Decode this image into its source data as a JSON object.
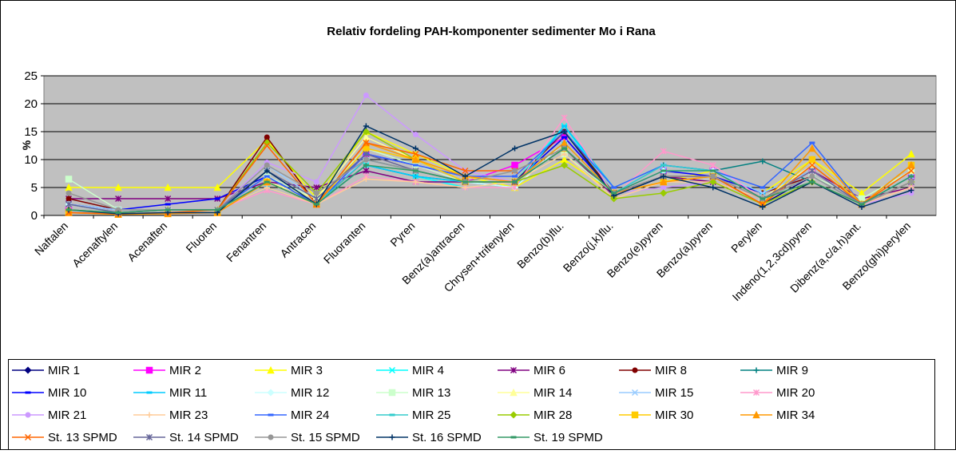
{
  "chart_data": {
    "type": "line",
    "title": "Relativ fordeling PAH-komponenter sedimenter Mo i Rana",
    "y_label": "%",
    "categories": [
      "Naftalen",
      "Acenaftylen",
      "Acenaften",
      "Fluoren",
      "Fenantren",
      "Antracen",
      "Fluoranten",
      "Pyren",
      "Benz(a)antracen",
      "Chrysen+trifenylen",
      "Benzo(b)flu.",
      "Benzo(j,k)flu.",
      "Benzo(e)pyren",
      "Benzo(a)pyren",
      "Perylen",
      "Indeno(1,2,3cd)pyren",
      "Dibenz(a,c/a,h)ant.",
      "Benzo(ghi)perylen"
    ],
    "ylim": [
      0,
      25
    ],
    "yticks": [
      0,
      5,
      10,
      15,
      20,
      25
    ],
    "grid": true,
    "plot_background": "#c0c0c0",
    "series": [
      {
        "name": "MIR 1",
        "color": "#000080",
        "marker": "diamond",
        "values": [
          2,
          0.5,
          1,
          1,
          7,
          2,
          10,
          8,
          6,
          6,
          14,
          4,
          7,
          7,
          2,
          7,
          2,
          6
        ]
      },
      {
        "name": "MIR 2",
        "color": "#ff00ff",
        "marker": "square",
        "values": [
          1,
          0.5,
          1,
          1,
          6,
          2,
          11,
          9,
          6,
          9,
          14,
          4,
          8,
          8,
          3,
          8,
          2,
          7
        ]
      },
      {
        "name": "MIR 3",
        "color": "#ffff00",
        "marker": "triangle",
        "values": [
          5,
          5,
          5,
          5,
          13.5,
          3,
          15,
          11,
          7,
          5,
          10,
          4,
          6,
          8,
          4,
          10,
          4,
          11
        ]
      },
      {
        "name": "MIR 4",
        "color": "#00ffff",
        "marker": "x",
        "values": [
          2,
          0.5,
          1,
          1,
          6,
          2,
          9,
          7,
          5,
          6,
          16,
          4,
          8,
          8,
          4,
          8,
          2,
          7
        ]
      },
      {
        "name": "MIR 6",
        "color": "#800080",
        "marker": "star",
        "values": [
          3,
          3,
          3,
          3,
          6,
          5,
          8,
          6,
          6,
          6,
          12,
          3.5,
          7,
          6,
          3,
          8,
          3,
          5
        ]
      },
      {
        "name": "MIR 8",
        "color": "#800000",
        "marker": "circle",
        "values": [
          3,
          1,
          1,
          1,
          14,
          2,
          10,
          8,
          6,
          6,
          15,
          4,
          7,
          7,
          4,
          7,
          2,
          6
        ]
      },
      {
        "name": "MIR 9",
        "color": "#008080",
        "marker": "plus",
        "values": [
          1,
          0.5,
          1,
          1,
          7,
          2,
          9,
          7,
          6,
          6,
          11,
          4,
          9,
          8,
          9.7,
          6,
          2,
          7
        ]
      },
      {
        "name": "MIR 10",
        "color": "#0000ff",
        "marker": "dash",
        "values": [
          2,
          1,
          2,
          3,
          7,
          2,
          11,
          9,
          7,
          6,
          14,
          4,
          8,
          7,
          4,
          8,
          2,
          7
        ]
      },
      {
        "name": "MIR 11",
        "color": "#00ccff",
        "marker": "dash",
        "values": [
          1,
          0.5,
          1,
          1,
          5,
          2,
          9,
          7,
          6,
          5,
          16,
          5,
          9,
          8,
          4,
          8,
          2,
          7
        ]
      },
      {
        "name": "MIR 12",
        "color": "#ccffff",
        "marker": "diamond",
        "values": [
          2,
          0.5,
          1,
          1,
          8,
          3,
          10,
          8,
          6,
          5,
          13,
          4,
          8,
          8,
          3,
          7,
          2,
          6
        ]
      },
      {
        "name": "MIR 13",
        "color": "#ccffcc",
        "marker": "square",
        "values": [
          6.5,
          1,
          1,
          1,
          7,
          3,
          12,
          9,
          6,
          6,
          11,
          4,
          6,
          7,
          3,
          7,
          3,
          8
        ]
      },
      {
        "name": "MIR 14",
        "color": "#ffff99",
        "marker": "triangle",
        "values": [
          1,
          0.5,
          1,
          1,
          6,
          3,
          14,
          10,
          7,
          6,
          12,
          4,
          6,
          7,
          3,
          9,
          2,
          8
        ]
      },
      {
        "name": "MIR 15",
        "color": "#99ccff",
        "marker": "x",
        "values": [
          2,
          1,
          1,
          1,
          9,
          3,
          10,
          8,
          6,
          6,
          13,
          4,
          9,
          8,
          4,
          8,
          2,
          7
        ]
      },
      {
        "name": "MIR 20",
        "color": "#ff99cc",
        "marker": "star",
        "values": [
          1,
          0.5,
          1,
          1,
          4.5,
          2,
          7,
          6,
          5,
          5,
          17.5,
          3.5,
          11.5,
          9,
          3,
          7,
          2,
          5
        ]
      },
      {
        "name": "MIR 21",
        "color": "#cc99ff",
        "marker": "circle",
        "values": [
          1,
          0.5,
          1,
          1,
          9.5,
          6,
          21.5,
          14.5,
          8,
          6,
          12,
          4,
          5,
          6,
          3,
          8,
          2,
          4
        ]
      },
      {
        "name": "MIR 23",
        "color": "#ffcc99",
        "marker": "plus",
        "values": [
          1,
          0.5,
          1,
          1,
          5,
          2,
          6.5,
          6,
          5,
          6,
          11,
          3,
          6,
          6,
          3,
          8,
          2,
          5
        ]
      },
      {
        "name": "MIR 24",
        "color": "#3366ff",
        "marker": "dash",
        "values": [
          1,
          0.5,
          1,
          1,
          7,
          2,
          11,
          9,
          7,
          7,
          15,
          5,
          9,
          8,
          5,
          13,
          2,
          9
        ]
      },
      {
        "name": "MIR 25",
        "color": "#33cccc",
        "marker": "dash",
        "values": [
          1,
          0.5,
          1,
          1,
          6,
          2,
          10,
          8,
          6,
          6,
          13,
          4,
          9,
          8,
          3,
          7,
          2,
          7
        ]
      },
      {
        "name": "MIR 28",
        "color": "#99cc00",
        "marker": "diamond",
        "values": [
          1,
          0.5,
          1,
          1,
          13,
          4,
          15,
          10,
          6,
          6,
          9,
          3,
          4,
          6,
          2,
          6,
          2,
          6
        ]
      },
      {
        "name": "MIR 30",
        "color": "#ffcc00",
        "marker": "square",
        "values": [
          0.5,
          0.2,
          0.5,
          0.5,
          6,
          2,
          12,
          10,
          6,
          6,
          12,
          4,
          6,
          7,
          2,
          10,
          2,
          9
        ]
      },
      {
        "name": "MIR 34",
        "color": "#ff9900",
        "marker": "triangle",
        "values": [
          0.5,
          0.2,
          0.3,
          0.5,
          6,
          2,
          13,
          10,
          7,
          6,
          13,
          4,
          6,
          7,
          2,
          12,
          2,
          9
        ]
      },
      {
        "name": "St. 13 SPMD",
        "color": "#ff6600",
        "marker": "x",
        "values": [
          0.5,
          0.3,
          0.5,
          1,
          12.5,
          2,
          13,
          11,
          8,
          8,
          12,
          4,
          7,
          7,
          2,
          9,
          2,
          8
        ]
      },
      {
        "name": "St. 14 SPMD",
        "color": "#666699",
        "marker": "star",
        "values": [
          2,
          0.5,
          1,
          1,
          8,
          3,
          11,
          8,
          6,
          6,
          12,
          4,
          7,
          7,
          3,
          8,
          2,
          6
        ]
      },
      {
        "name": "St. 15 SPMD",
        "color": "#969696",
        "marker": "circle",
        "values": [
          4,
          1,
          1,
          1,
          9,
          4,
          10,
          8,
          6,
          8,
          12,
          4,
          7,
          7,
          3,
          7,
          2,
          6
        ]
      },
      {
        "name": "St. 16 SPMD",
        "color": "#003366",
        "marker": "plus",
        "values": [
          1,
          0.3,
          0.5,
          0.5,
          8,
          2,
          16,
          12,
          7,
          12,
          15,
          3.5,
          7,
          5,
          1.5,
          6,
          1.5,
          4.5
        ]
      },
      {
        "name": "St. 19 SPMD",
        "color": "#339966",
        "marker": "dash",
        "values": [
          1,
          0.5,
          1,
          1,
          6,
          2,
          9,
          8,
          6,
          6,
          12,
          4,
          8,
          8,
          3,
          6,
          2,
          7
        ]
      }
    ]
  }
}
